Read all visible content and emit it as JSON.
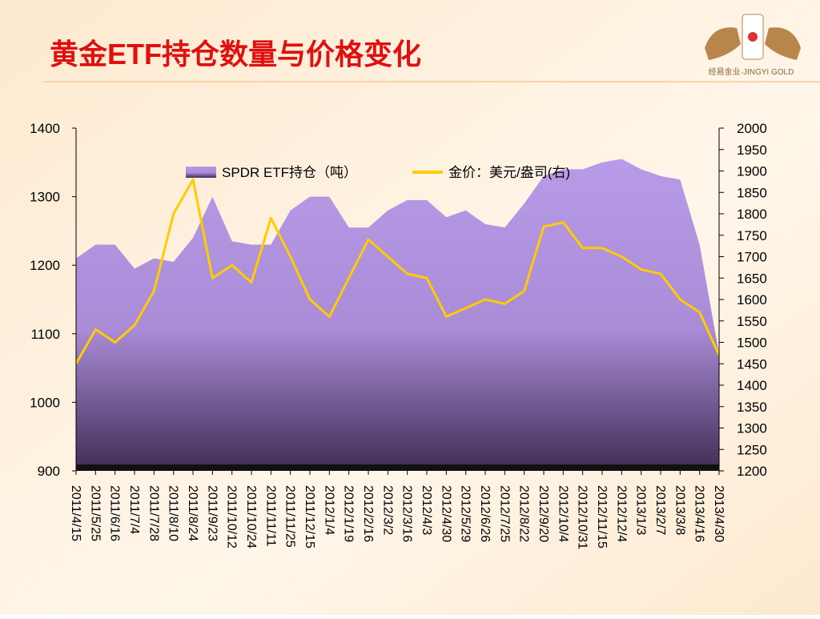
{
  "chart_data": {
    "type": "area-line",
    "title": "黄金ETF持仓数量与价格变化",
    "logo_text": "经易金业·JINGYI GOLD",
    "categories": [
      "2011/4/15",
      "2011/5/25",
      "2011/6/16",
      "2011/7/4",
      "2011/7/28",
      "2011/8/10",
      "2011/8/24",
      "2011/9/23",
      "2011/10/12",
      "2011/10/24",
      "2011/11/11",
      "2011/11/25",
      "2011/12/15",
      "2012/1/4",
      "2012/1/19",
      "2012/2/16",
      "2012/3/2",
      "2012/3/16",
      "2012/4/3",
      "2012/4/30",
      "2012/5/29",
      "2012/6/26",
      "2012/7/25",
      "2012/8/22",
      "2012/9/20",
      "2012/10/4",
      "2012/10/31",
      "2012/11/15",
      "2012/12/4",
      "2013/1/3",
      "2013/2/7",
      "2013/3/8",
      "2013/4/16",
      "2013/4/30"
    ],
    "series": [
      {
        "name": "SPDR ETF持仓（吨）",
        "color": "#b89be8",
        "axis": "y",
        "values": [
          1210,
          1230,
          1230,
          1195,
          1210,
          1205,
          1240,
          1300,
          1235,
          1230,
          1230,
          1280,
          1300,
          1300,
          1255,
          1255,
          1280,
          1295,
          1295,
          1270,
          1280,
          1260,
          1255,
          1290,
          1330,
          1340,
          1340,
          1350,
          1355,
          1340,
          1330,
          1325,
          1230,
          1070
        ]
      },
      {
        "name": "金价：美元/盎司(右)",
        "color": "#ffcc00",
        "axis": "y2",
        "values": [
          1450,
          1530,
          1500,
          1540,
          1620,
          1800,
          1880,
          1650,
          1680,
          1640,
          1790,
          1700,
          1600,
          1560,
          1650,
          1740,
          1700,
          1660,
          1650,
          1560,
          1580,
          1600,
          1590,
          1620,
          1770,
          1780,
          1720,
          1720,
          1700,
          1670,
          1660,
          1600,
          1570,
          1470
        ]
      }
    ],
    "ylim": [
      900,
      1400
    ],
    "yticks": [
      900,
      1000,
      1100,
      1200,
      1300,
      1400
    ],
    "y2lim": [
      1200,
      2000
    ],
    "y2ticks": [
      1200,
      1250,
      1300,
      1350,
      1400,
      1450,
      1500,
      1550,
      1600,
      1650,
      1700,
      1750,
      1800,
      1850,
      1900,
      1950,
      2000
    ]
  }
}
